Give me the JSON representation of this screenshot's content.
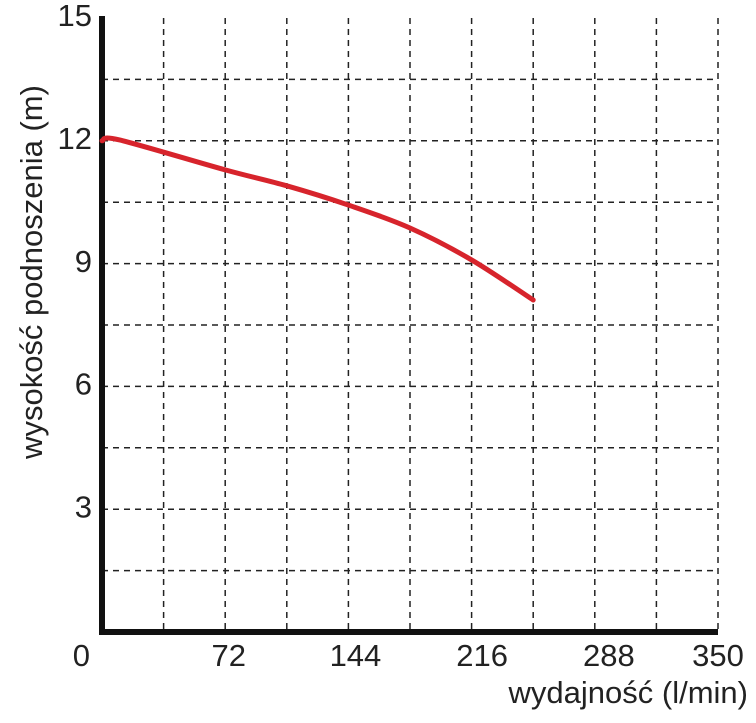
{
  "chart_data": {
    "type": "line",
    "x_label": "wydajność (l/min)",
    "y_label": "wysokość podnoszenia (m)",
    "xlim": [
      0,
      350
    ],
    "xticks": [
      0,
      72,
      144,
      216,
      288,
      350
    ],
    "ylim": [
      0,
      15
    ],
    "yticks": [
      3,
      6,
      9,
      12,
      15
    ],
    "grid": true,
    "series": [
      {
        "color": "#d7242c",
        "x": [
          0,
          10,
          70,
          105,
          140,
          175,
          210,
          245
        ],
        "values": [
          12.0,
          12.02,
          11.29,
          10.9,
          10.43,
          9.87,
          9.09,
          8.11
        ]
      }
    ]
  }
}
